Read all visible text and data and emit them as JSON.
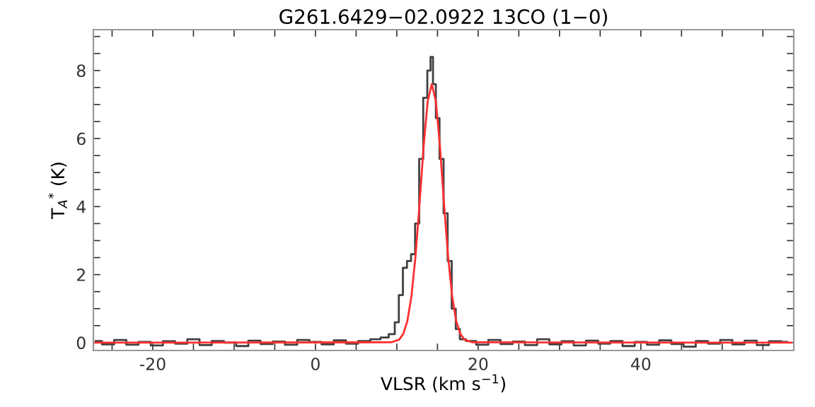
{
  "chart_data": {
    "type": "step",
    "title": "G261.6429−02.0922 13CO (1−0)",
    "xlabel": "VLSR (km s$^{−1}$)",
    "ylabel": "T$_{A}$$^{*}$ (K)",
    "xlim": [
      -27.3,
      58.8
    ],
    "ylim": [
      -0.23,
      9.2
    ],
    "xticks": [
      {
        "value": -25,
        "label": null
      },
      -20,
      {
        "value": -15,
        "label": null
      },
      {
        "value": -10,
        "label": null
      },
      {
        "value": -5,
        "label": null
      },
      0,
      {
        "value": 5,
        "label": null
      },
      {
        "value": 10,
        "label": null
      },
      {
        "value": 15,
        "label": null
      },
      20,
      {
        "value": 25,
        "label": null
      },
      {
        "value": 30,
        "label": null
      },
      {
        "value": 35,
        "label": null
      },
      40,
      {
        "value": 45,
        "label": null
      },
      {
        "value": 50,
        "label": null
      },
      {
        "value": 55,
        "label": null
      }
    ],
    "yticks": [
      0,
      {
        "value": 0.5,
        "label": null
      },
      {
        "value": 1,
        "label": null
      },
      {
        "value": 1.5,
        "label": null
      },
      2,
      {
        "value": 2.5,
        "label": null
      },
      {
        "value": 3,
        "label": null
      },
      {
        "value": 3.5,
        "label": null
      },
      4,
      {
        "value": 4.5,
        "label": null
      },
      {
        "value": 5,
        "label": null
      },
      {
        "value": 5.5,
        "label": null
      },
      6,
      {
        "value": 6.5,
        "label": null
      },
      {
        "value": 7,
        "label": null
      },
      {
        "value": 7.5,
        "label": null
      },
      8,
      {
        "value": 8.5,
        "label": null
      },
      {
        "value": 9,
        "label": null
      }
    ],
    "grid": false,
    "series": [
      {
        "color": "#404040",
        "x": [
          -27,
          -25.5,
          -24,
          -22.5,
          -21,
          -19.5,
          -18,
          -16.5,
          -15,
          -13.5,
          -12,
          -10.5,
          -9,
          -7.5,
          -6,
          -4.5,
          -3,
          -1.5,
          0,
          1.5,
          3,
          4.5,
          6,
          7.5,
          8.5,
          9.5,
          10,
          10.5,
          11,
          11.5,
          12,
          12.5,
          13,
          13.5,
          14,
          14.3,
          14.6,
          15,
          15.5,
          16,
          16.5,
          17,
          17.5,
          18,
          19,
          20.5,
          22,
          23.5,
          25,
          26.5,
          28,
          29.5,
          31,
          32.5,
          34,
          35.5,
          37,
          38.5,
          40,
          41.5,
          43,
          44.5,
          46,
          47.5,
          49,
          50.5,
          52,
          53.5,
          55,
          56.5,
          58
        ],
        "values": [
          0.05,
          -0.05,
          0.08,
          -0.06,
          0.02,
          -0.08,
          0.04,
          -0.03,
          0.1,
          -0.07,
          0.05,
          0.0,
          -0.1,
          0.06,
          -0.04,
          0.03,
          -0.06,
          0.08,
          0.02,
          -0.05,
          0.07,
          -0.03,
          0.05,
          0.1,
          0.15,
          0.25,
          0.6,
          1.4,
          2.2,
          2.4,
          2.6,
          3.5,
          5.4,
          7.2,
          8.0,
          8.4,
          7.6,
          6.6,
          5.4,
          3.8,
          2.4,
          1.0,
          0.4,
          0.1,
          0.05,
          -0.06,
          0.08,
          -0.04,
          0.03,
          -0.07,
          0.1,
          -0.05,
          0.04,
          -0.08,
          0.06,
          -0.03,
          0.05,
          -0.1,
          0.02,
          -0.06,
          0.07,
          -0.04,
          -0.12,
          0.05,
          -0.03,
          0.08,
          -0.05,
          0.06,
          -0.07,
          0.04,
          0.02
        ]
      },
      {
        "type": "line",
        "color": "#ff3030",
        "x": [
          -27.3,
          9.3,
          10.3,
          10.8,
          11.3,
          11.8,
          12.3,
          12.8,
          13.3,
          13.8,
          14.3,
          14.8,
          15.3,
          15.8,
          16.3,
          16.8,
          17.3,
          17.8,
          18.3,
          19.3,
          58.5
        ],
        "values": [
          0,
          0.01,
          0.09,
          0.26,
          0.64,
          1.37,
          2.54,
          4.1,
          5.78,
          7.1,
          7.6,
          7.1,
          5.78,
          4.1,
          2.54,
          1.37,
          0.64,
          0.26,
          0.09,
          0.01,
          0
        ]
      }
    ]
  }
}
